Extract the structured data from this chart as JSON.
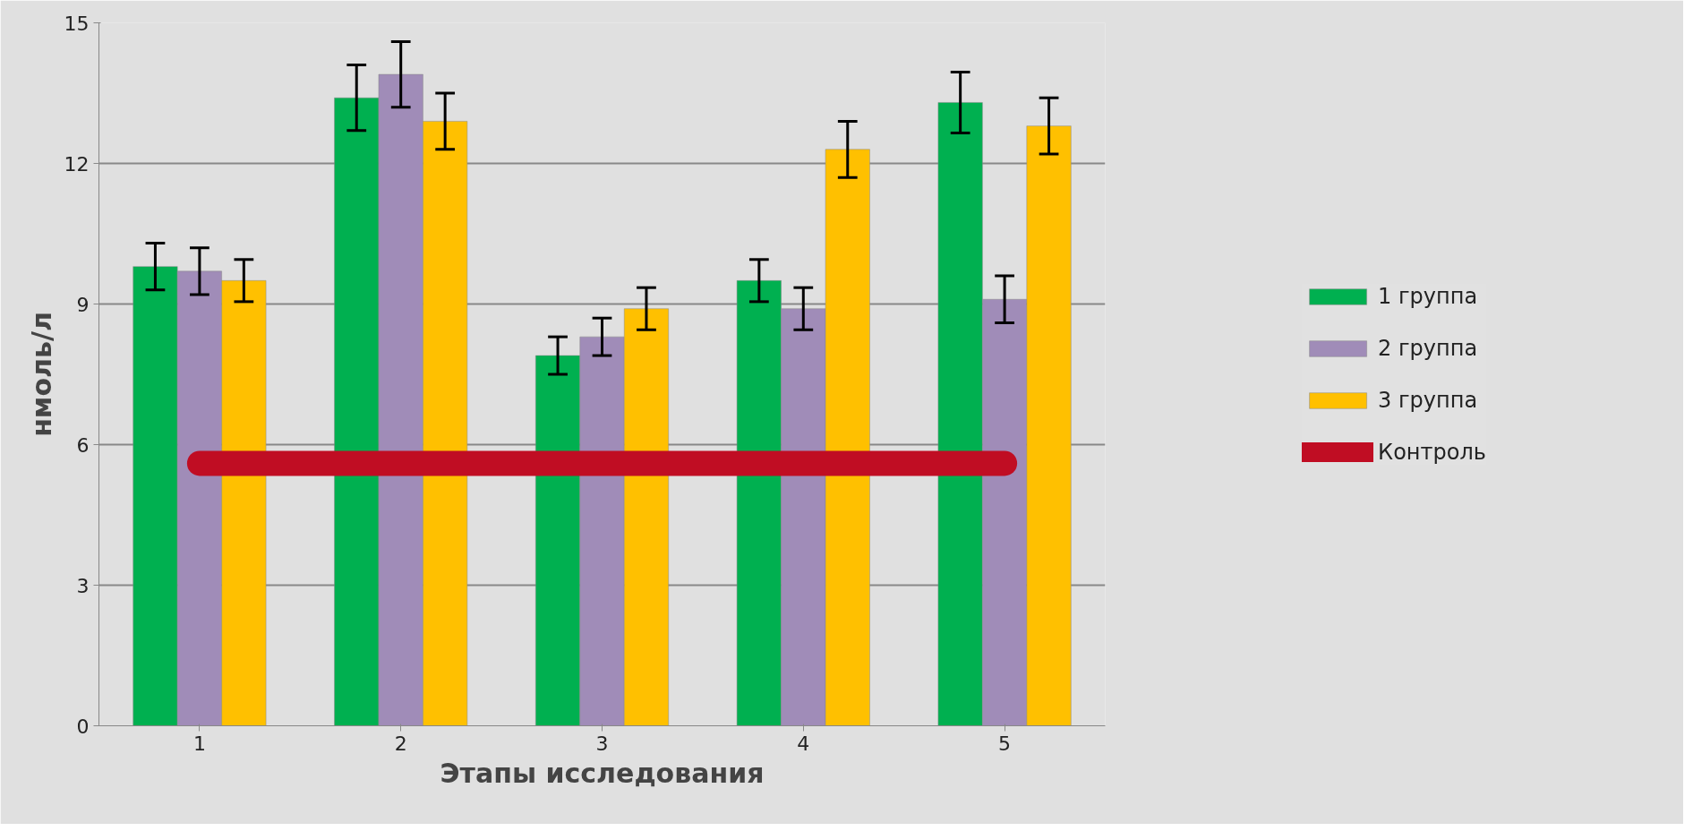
{
  "chart_data": {
    "type": "bar",
    "xlabel": "Этапы исследования",
    "ylabel": "нмоль/л",
    "categories": [
      "1",
      "2",
      "3",
      "4",
      "5"
    ],
    "series": [
      {
        "name": "1 группа",
        "color": "#00b050",
        "values": [
          9.8,
          13.4,
          7.9,
          9.5,
          13.3
        ],
        "errors": [
          0.5,
          0.7,
          0.4,
          0.45,
          0.65
        ]
      },
      {
        "name": "2 группа",
        "color": "#a08cb8",
        "values": [
          9.7,
          13.9,
          8.3,
          8.9,
          9.1
        ],
        "errors": [
          0.5,
          0.7,
          0.4,
          0.45,
          0.5
        ]
      },
      {
        "name": "3 группа",
        "color": "#ffc000",
        "values": [
          9.5,
          12.9,
          8.9,
          12.3,
          12.8
        ],
        "errors": [
          0.45,
          0.6,
          0.45,
          0.6,
          0.6
        ]
      },
      {
        "name": "Контроль",
        "type": "line",
        "color": "#c00d23",
        "values": [
          5.6,
          5.6,
          5.6,
          5.6,
          5.6
        ]
      }
    ],
    "ylim": [
      0,
      15
    ],
    "yticks": [
      0,
      3,
      6,
      9,
      12,
      15
    ],
    "grid": "y",
    "legend": "right"
  }
}
